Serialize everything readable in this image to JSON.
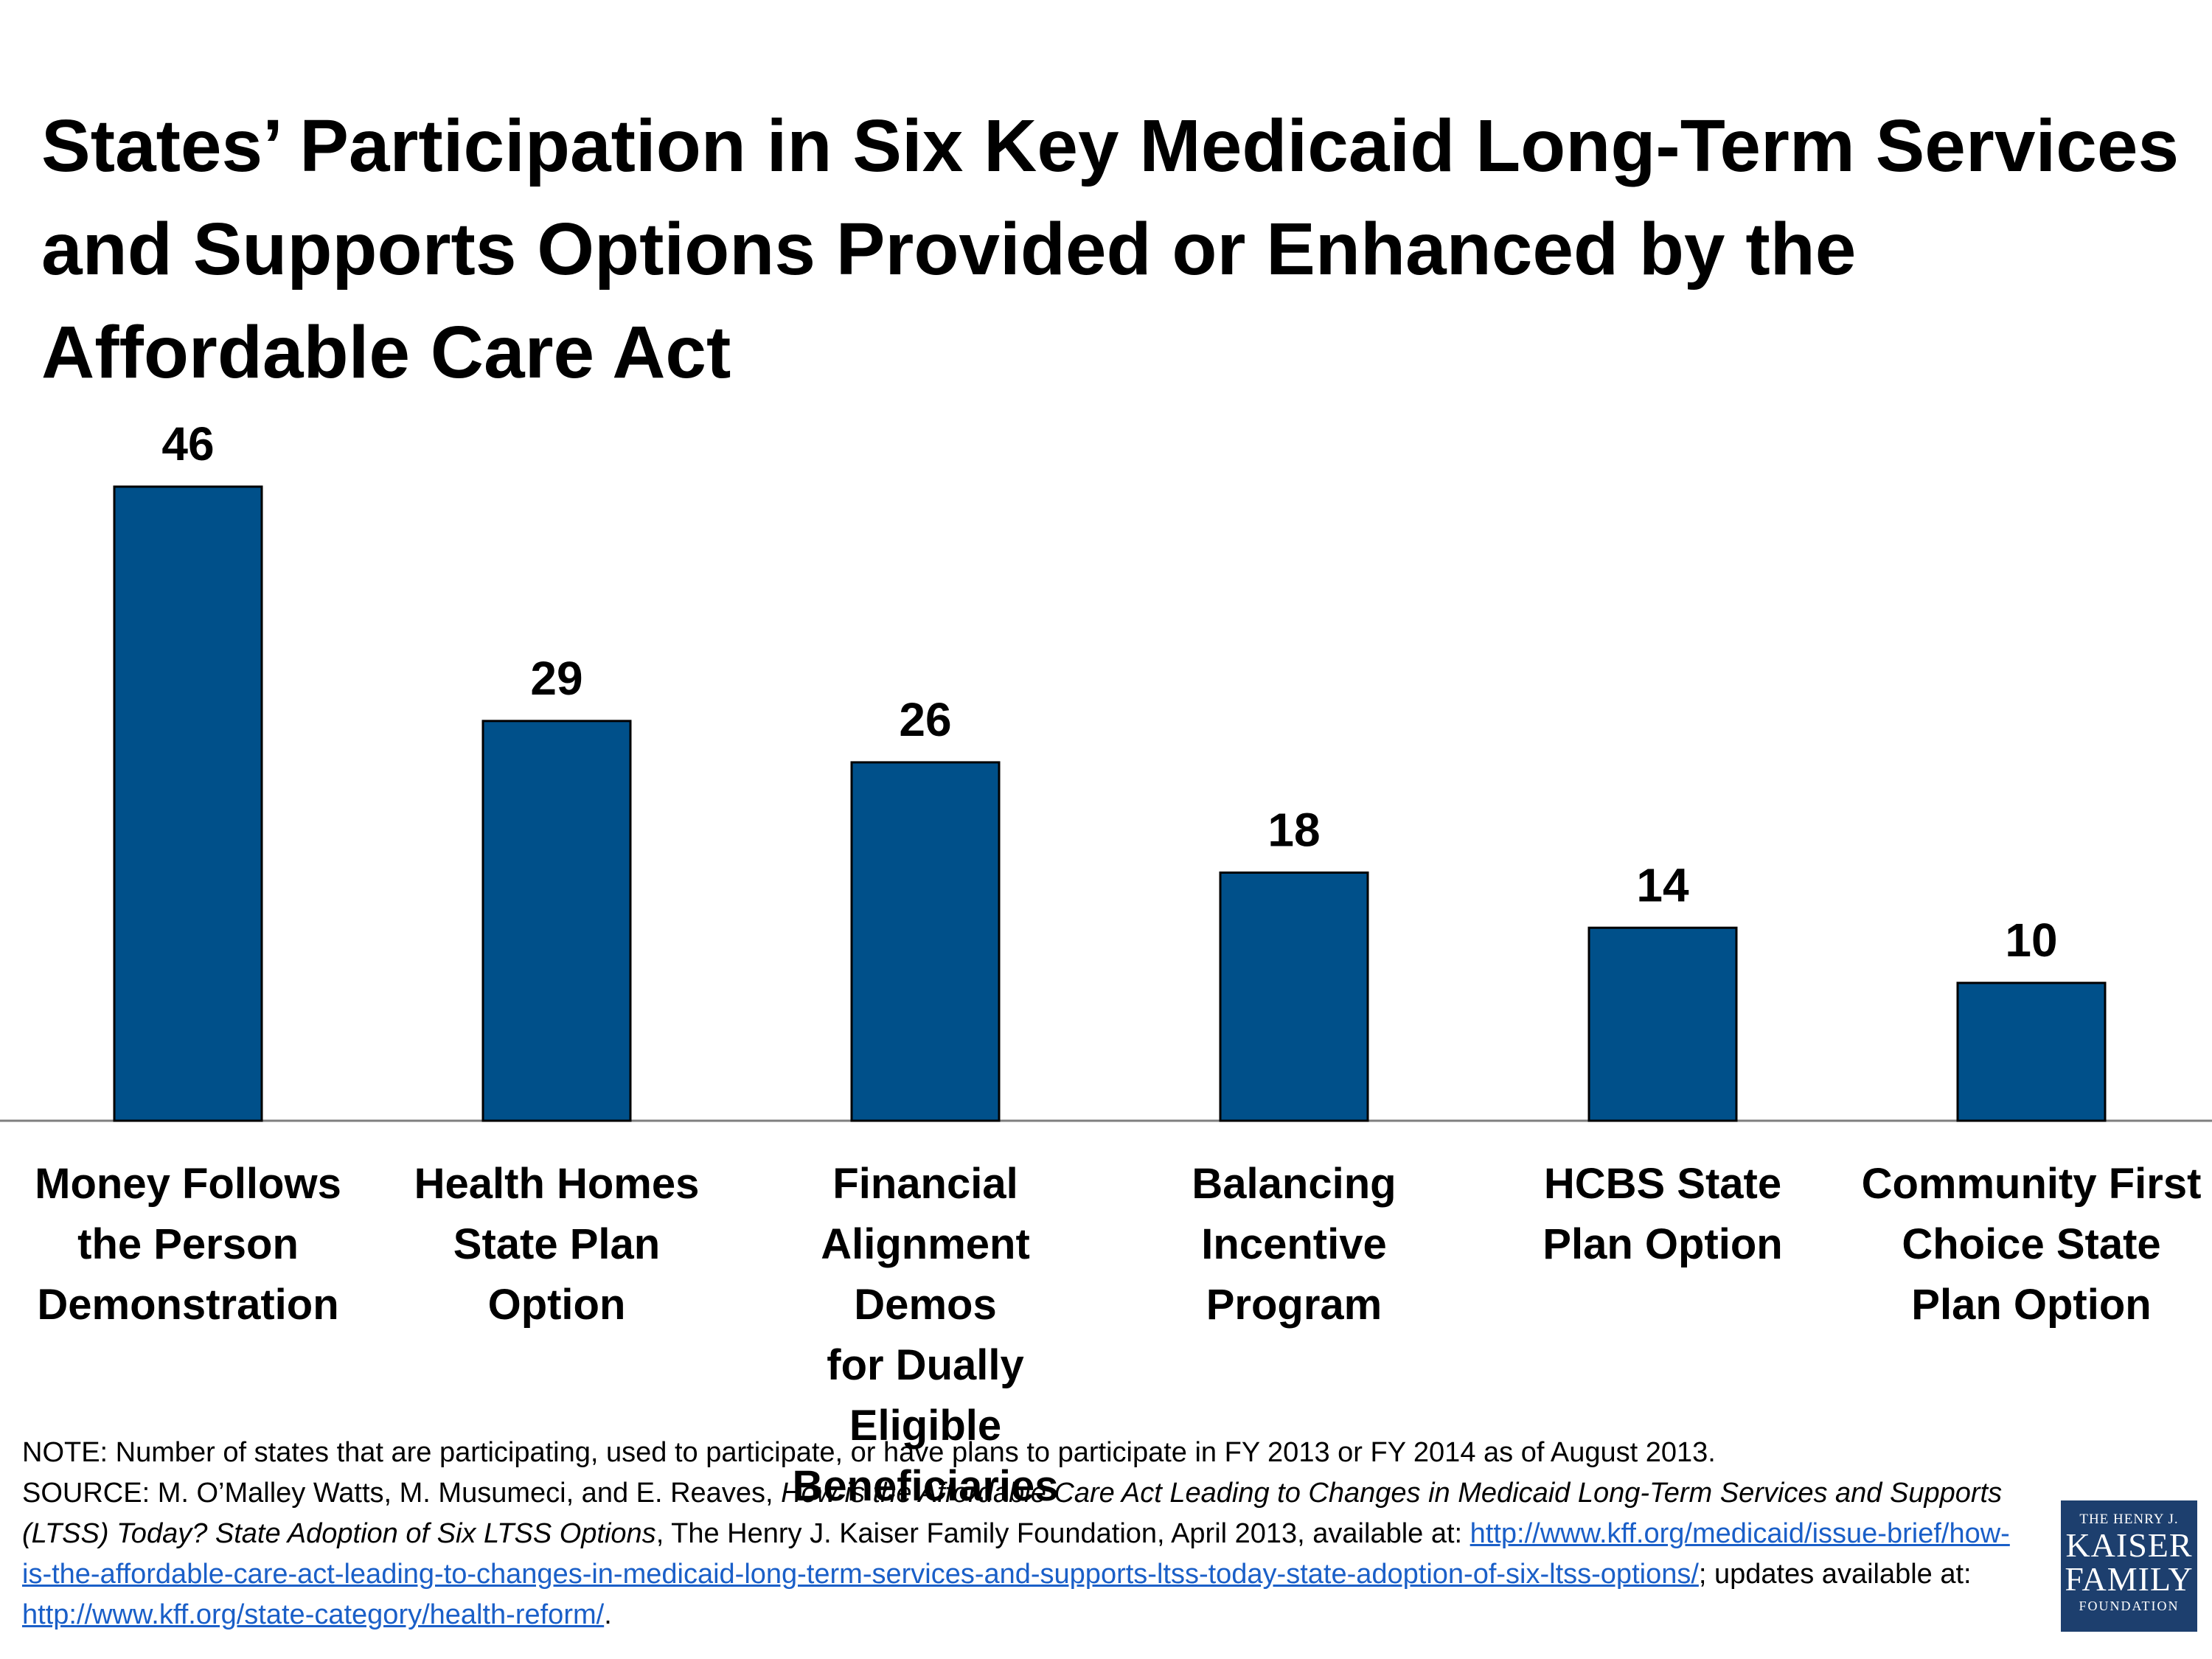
{
  "title": "States’ Participation in Six Key Medicaid Long-Term Services\nand Supports Options Provided or Enhanced by the\nAffordable Care Act",
  "colors": {
    "bar": "#00508a",
    "bar_stroke": "#000000",
    "axis": "#7f7f7f",
    "link": "#1a5fc8",
    "logo_bg": "#1d3f6e"
  },
  "chart_data": {
    "type": "bar",
    "title": "States’ Participation in Six Key Medicaid Long-Term Services and Supports Options Provided or Enhanced by the Affordable Care Act",
    "categories": [
      "Money Follows the Person Demonstration",
      "Health Homes State Plan Option",
      "Financial Alignment Demos for Dually Eligible Beneficiaries",
      "Balancing Incentive Program",
      "HCBS State Plan Option",
      "Community First Choice State Plan Option"
    ],
    "category_lines": [
      [
        "Money Follows",
        "the Person",
        "Demonstration"
      ],
      [
        "Health Homes",
        "State Plan",
        "Option"
      ],
      [
        "Financial",
        "Alignment Demos",
        "for Dually Eligible",
        "Beneficiaries"
      ],
      [
        "Balancing",
        "Incentive",
        "Program"
      ],
      [
        "HCBS State",
        "Plan Option"
      ],
      [
        "Community First",
        "Choice State",
        "Plan Option"
      ]
    ],
    "values": [
      46,
      29,
      26,
      18,
      14,
      10
    ],
    "data_labels": [
      "46",
      "29",
      "26",
      "18",
      "14",
      "10"
    ],
    "xlabel": "",
    "ylabel": "",
    "ylim": [
      0,
      46
    ],
    "grid": false,
    "legend": "none"
  },
  "footnotes": {
    "note": "NOTE: Number of states that are participating, used to participate, or have plans to participate in FY 2013 or FY 2014 as of August 2013.",
    "source_prefix": "SOURCE: M. O’Malley Watts, M. Musumeci, and E. Reaves, ",
    "source_title": "How is the Affordable Care Act Leading to Changes in Medicaid Long-Term Services and Supports (LTSS) Today? State Adoption of Six LTSS Options",
    "source_suffix": ", The Henry J. Kaiser Family Foundation, April 2013, available at: ",
    "source_link": "http://www.kff.org/medicaid/issue-brief/how-is-the-affordable-care-act-leading-to-changes-in-medicaid-long-term-services-and-supports-ltss-today-state-adoption-of-six-ltss-options/",
    "updates_text": "; updates available at: ",
    "updates_link": "http://www.kff.org/state-category/health-reform/",
    "end_period": "."
  },
  "logo": {
    "line1": "THE HENRY J.",
    "line2": "KAISER",
    "line3": "FAMILY",
    "line4": "FOUNDATION"
  }
}
